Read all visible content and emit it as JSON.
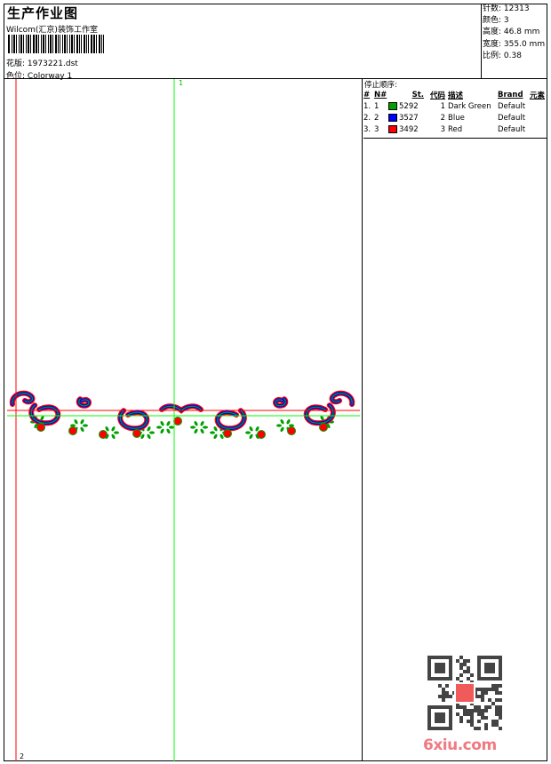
{
  "header": {
    "title": "生产作业图",
    "company": "Wilcom(汇京)装饰工作室",
    "design_label": "花版:",
    "design_file": "1973221.dst",
    "colorway_label": "色位:",
    "colorway": "Colorway 1"
  },
  "info": [
    {
      "label": "针数:",
      "value": "12313"
    },
    {
      "label": "颜色:",
      "value": "3"
    },
    {
      "label": "高度:",
      "value": "46.8 mm"
    },
    {
      "label": "宽度:",
      "value": "355.0 mm"
    },
    {
      "label": "比例:",
      "value": "0.38"
    }
  ],
  "stop_sequence": {
    "title": "停止顺序:",
    "columns": [
      "#",
      "N#",
      "St.",
      "代码",
      "描述",
      "Brand",
      "元素"
    ],
    "rows": [
      {
        "idx": "1.",
        "n": "1",
        "color": "#00a000",
        "st": "5292",
        "code": "1",
        "desc": "Dark Green",
        "brand": "Default"
      },
      {
        "idx": "2.",
        "n": "2",
        "color": "#0000ff",
        "st": "3527",
        "code": "2",
        "desc": "Blue",
        "brand": "Default"
      },
      {
        "idx": "3.",
        "n": "3",
        "color": "#ff0000",
        "st": "3492",
        "code": "3",
        "desc": "Red",
        "brand": "Default"
      }
    ]
  },
  "markers": {
    "start": "1",
    "end": "2"
  },
  "colors": {
    "red_guide": "#ff0000",
    "green_guide": "#00ff00"
  },
  "watermark": {
    "text": "6xiu.com",
    "qr_seal": "设计图版"
  }
}
